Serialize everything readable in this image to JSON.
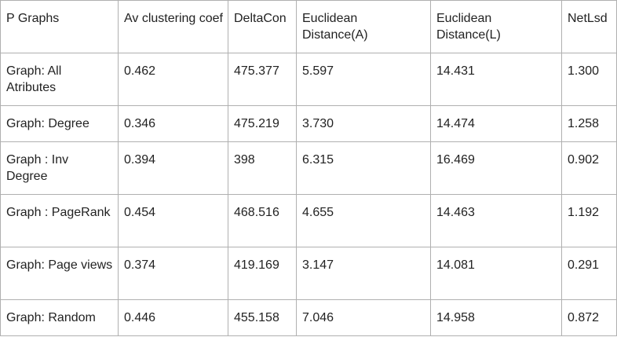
{
  "table": {
    "headers": [
      "P Graphs",
      "Av clustering coef",
      "DeltaCon",
      "Euclidean Distance(A)",
      "Euclidean Distance(L)",
      "NetLsd"
    ],
    "rows": [
      [
        "Graph: All Atributes",
        "0.462",
        "475.377",
        "5.597",
        "14.431",
        "1.300"
      ],
      [
        "Graph: Degree",
        "0.346",
        "475.219",
        "3.730",
        "14.474",
        "1.258"
      ],
      [
        "Graph : Inv Degree",
        "0.394",
        "398",
        "6.315",
        "16.469",
        "0.902"
      ],
      [
        "Graph : PageRank",
        "0.454",
        "468.516",
        "4.655",
        "14.463",
        "1.192"
      ],
      [
        "Graph: Page views",
        "0.374",
        "419.169",
        "3.147",
        "14.081",
        "0.291"
      ],
      [
        "Graph: Random",
        "0.446",
        "455.158",
        "7.046",
        "14.958",
        "0.872"
      ]
    ]
  }
}
